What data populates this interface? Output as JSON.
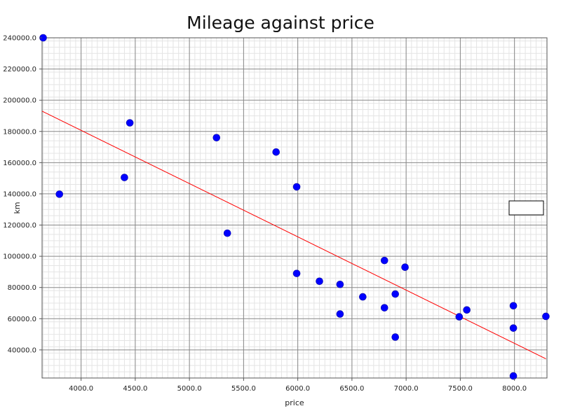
{
  "chart_data": {
    "type": "scatter",
    "title": "Mileage against price",
    "xlabel": "price",
    "ylabel": "km",
    "xlim": [
      3640,
      8300
    ],
    "ylim": [
      22000,
      240000
    ],
    "x_ticks": [
      4000,
      4500,
      5000,
      5500,
      6000,
      6500,
      7000,
      7500,
      8000
    ],
    "x_tick_labels": [
      "4000.0",
      "4500.0",
      "5000.0",
      "5500.0",
      "6000.0",
      "6500.0",
      "7000.0",
      "7500.0",
      "8000.0"
    ],
    "y_ticks": [
      40000,
      60000,
      80000,
      100000,
      120000,
      140000,
      160000,
      180000,
      200000,
      220000,
      240000
    ],
    "y_tick_labels": [
      "40000.0",
      "60000.0",
      "80000.0",
      "100000.0",
      "120000.0",
      "140000.0",
      "160000.0",
      "180000.0",
      "200000.0",
      "220000.0",
      "240000.0"
    ],
    "grid": true,
    "legend": "right",
    "point_color": "#0000ff",
    "line_color": "#ff0000",
    "points": [
      {
        "x": 3650,
        "y": 240000
      },
      {
        "x": 3800,
        "y": 139800
      },
      {
        "x": 4400,
        "y": 150500
      },
      {
        "x": 4450,
        "y": 185500
      },
      {
        "x": 5250,
        "y": 176000
      },
      {
        "x": 5350,
        "y": 114800
      },
      {
        "x": 5800,
        "y": 166800
      },
      {
        "x": 5990,
        "y": 144500
      },
      {
        "x": 5990,
        "y": 89000
      },
      {
        "x": 6200,
        "y": 84000
      },
      {
        "x": 6390,
        "y": 82000
      },
      {
        "x": 6390,
        "y": 63000
      },
      {
        "x": 6600,
        "y": 74000
      },
      {
        "x": 6800,
        "y": 97300
      },
      {
        "x": 6800,
        "y": 67000
      },
      {
        "x": 6900,
        "y": 75800
      },
      {
        "x": 6900,
        "y": 48200
      },
      {
        "x": 6990,
        "y": 93000
      },
      {
        "x": 7490,
        "y": 61200
      },
      {
        "x": 7560,
        "y": 65600
      },
      {
        "x": 7990,
        "y": 68300
      },
      {
        "x": 7990,
        "y": 54000
      },
      {
        "x": 7990,
        "y": 23300
      },
      {
        "x": 8290,
        "y": 61500
      }
    ],
    "regression_line": [
      {
        "x": 3640,
        "y": 193000
      },
      {
        "x": 8290,
        "y": 34300
      }
    ]
  }
}
